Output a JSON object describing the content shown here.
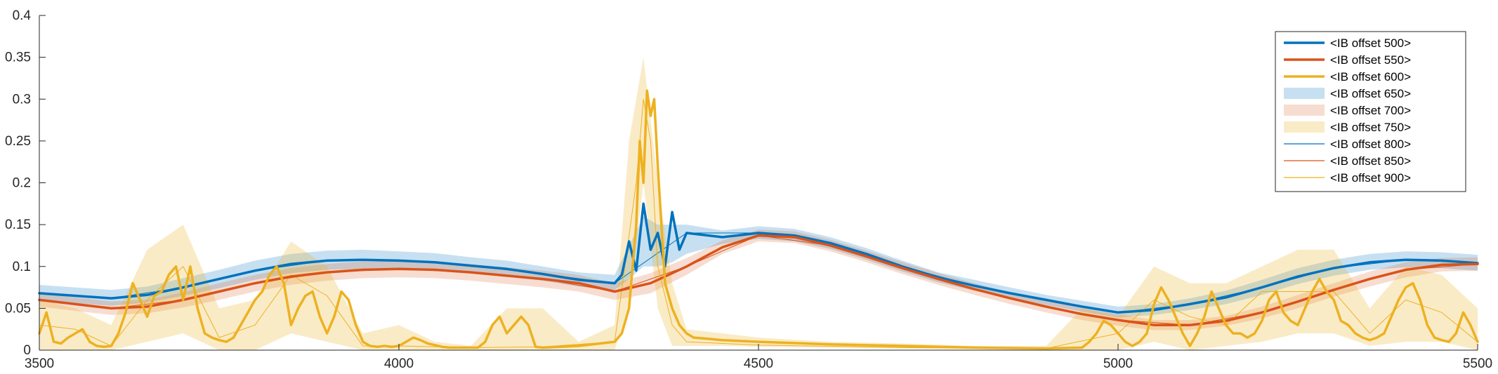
{
  "chart_data": {
    "type": "line",
    "title": "",
    "xlabel": "",
    "ylabel": "",
    "xlim": [
      3500,
      5500
    ],
    "ylim": [
      0,
      0.4
    ],
    "grid": false,
    "legend_position": "top-right",
    "x_ticks": [
      {
        "value": 3500,
        "label": "3500"
      },
      {
        "value": 4000,
        "label": "4000"
      },
      {
        "value": 4500,
        "label": "4500"
      },
      {
        "value": 5000,
        "label": "5000"
      },
      {
        "value": 5500,
        "label": "5500"
      }
    ],
    "y_ticks": [
      {
        "value": 0,
        "label": "0"
      },
      {
        "value": 0.05,
        "label": "0.05"
      },
      {
        "value": 0.1,
        "label": "0.1"
      },
      {
        "value": 0.15,
        "label": "0.15"
      },
      {
        "value": 0.2,
        "label": "0.2"
      },
      {
        "value": 0.25,
        "label": "0.25"
      },
      {
        "value": 0.3,
        "label": "0.3"
      },
      {
        "value": 0.35,
        "label": "0.35"
      },
      {
        "value": 0.4,
        "label": "0.4"
      }
    ],
    "series": [
      {
        "name": "<IB offset 500>",
        "kind": "line",
        "color": "#0072BD",
        "width": 3.5,
        "x": [
          3500,
          3550,
          3600,
          3650,
          3700,
          3750,
          3800,
          3850,
          3900,
          3950,
          4000,
          4050,
          4100,
          4150,
          4200,
          4250,
          4300,
          4310,
          4320,
          4330,
          4340,
          4350,
          4360,
          4370,
          4380,
          4390,
          4400,
          4450,
          4500,
          4550,
          4600,
          4650,
          4700,
          4750,
          4800,
          4850,
          4900,
          4950,
          5000,
          5050,
          5100,
          5150,
          5200,
          5250,
          5300,
          5350,
          5400,
          5450,
          5500
        ],
        "y": [
          0.068,
          0.065,
          0.062,
          0.066,
          0.075,
          0.085,
          0.095,
          0.103,
          0.107,
          0.108,
          0.107,
          0.105,
          0.101,
          0.097,
          0.091,
          0.084,
          0.08,
          0.09,
          0.13,
          0.095,
          0.175,
          0.12,
          0.14,
          0.1,
          0.165,
          0.12,
          0.14,
          0.135,
          0.14,
          0.137,
          0.128,
          0.115,
          0.1,
          0.087,
          0.077,
          0.068,
          0.06,
          0.052,
          0.045,
          0.048,
          0.055,
          0.063,
          0.075,
          0.088,
          0.098,
          0.105,
          0.108,
          0.107,
          0.104
        ]
      },
      {
        "name": "<IB offset 550>",
        "kind": "line",
        "color": "#D95319",
        "width": 3.5,
        "x": [
          3500,
          3550,
          3600,
          3650,
          3700,
          3750,
          3800,
          3850,
          3900,
          3950,
          4000,
          4050,
          4100,
          4150,
          4200,
          4250,
          4300,
          4350,
          4400,
          4450,
          4500,
          4550,
          4600,
          4650,
          4700,
          4750,
          4800,
          4850,
          4900,
          4950,
          5000,
          5050,
          5100,
          5150,
          5200,
          5250,
          5300,
          5350,
          5400,
          5450,
          5500
        ],
        "y": [
          0.06,
          0.055,
          0.05,
          0.052,
          0.06,
          0.07,
          0.08,
          0.088,
          0.093,
          0.096,
          0.097,
          0.096,
          0.093,
          0.089,
          0.085,
          0.08,
          0.07,
          0.08,
          0.1,
          0.123,
          0.137,
          0.135,
          0.125,
          0.112,
          0.098,
          0.085,
          0.073,
          0.062,
          0.052,
          0.043,
          0.036,
          0.03,
          0.03,
          0.035,
          0.045,
          0.058,
          0.072,
          0.085,
          0.096,
          0.102,
          0.103
        ]
      },
      {
        "name": "<IB offset 600>",
        "kind": "line",
        "color": "#EDB120",
        "width": 3.5,
        "x": [
          3500,
          3510,
          3520,
          3530,
          3540,
          3550,
          3560,
          3570,
          3580,
          3590,
          3600,
          3610,
          3620,
          3630,
          3640,
          3650,
          3660,
          3670,
          3680,
          3690,
          3700,
          3710,
          3720,
          3730,
          3740,
          3750,
          3760,
          3770,
          3780,
          3790,
          3800,
          3810,
          3820,
          3830,
          3840,
          3850,
          3860,
          3870,
          3880,
          3890,
          3900,
          3910,
          3920,
          3930,
          3940,
          3950,
          3960,
          3970,
          3980,
          3990,
          4000,
          4010,
          4020,
          4030,
          4040,
          4050,
          4060,
          4070,
          4080,
          4090,
          4100,
          4110,
          4120,
          4130,
          4140,
          4150,
          4160,
          4170,
          4180,
          4190,
          4200,
          4250,
          4300,
          4310,
          4320,
          4330,
          4335,
          4340,
          4345,
          4350,
          4355,
          4360,
          4365,
          4370,
          4380,
          4390,
          4400,
          4410,
          4450,
          4500,
          4600,
          4700,
          4800,
          4900,
          4950,
          4960,
          4970,
          4980,
          4990,
          5000,
          5010,
          5020,
          5030,
          5040,
          5050,
          5060,
          5070,
          5080,
          5090,
          5100,
          5110,
          5120,
          5130,
          5140,
          5150,
          5160,
          5170,
          5180,
          5190,
          5200,
          5210,
          5220,
          5230,
          5240,
          5250,
          5260,
          5270,
          5280,
          5290,
          5300,
          5310,
          5320,
          5330,
          5340,
          5350,
          5360,
          5370,
          5380,
          5390,
          5400,
          5410,
          5420,
          5430,
          5440,
          5450,
          5460,
          5470,
          5480,
          5490,
          5500
        ],
        "y": [
          0.02,
          0.045,
          0.01,
          0.008,
          0.015,
          0.02,
          0.025,
          0.01,
          0.005,
          0.004,
          0.005,
          0.02,
          0.045,
          0.08,
          0.06,
          0.04,
          0.065,
          0.07,
          0.09,
          0.1,
          0.06,
          0.1,
          0.05,
          0.02,
          0.015,
          0.012,
          0.01,
          0.015,
          0.03,
          0.045,
          0.06,
          0.07,
          0.09,
          0.1,
          0.08,
          0.03,
          0.05,
          0.065,
          0.07,
          0.04,
          0.02,
          0.04,
          0.07,
          0.06,
          0.03,
          0.01,
          0.005,
          0.004,
          0.005,
          0.004,
          0.005,
          0.01,
          0.015,
          0.012,
          0.008,
          0.006,
          0.004,
          0.003,
          0.003,
          0.003,
          0.003,
          0.003,
          0.01,
          0.03,
          0.04,
          0.02,
          0.03,
          0.04,
          0.03,
          0.004,
          0.003,
          0.005,
          0.01,
          0.02,
          0.05,
          0.15,
          0.25,
          0.2,
          0.31,
          0.28,
          0.3,
          0.22,
          0.15,
          0.08,
          0.05,
          0.03,
          0.02,
          0.015,
          0.012,
          0.01,
          0.007,
          0.005,
          0.003,
          0.002,
          0.003,
          0.01,
          0.02,
          0.035,
          0.03,
          0.02,
          0.01,
          0.005,
          0.01,
          0.02,
          0.055,
          0.075,
          0.06,
          0.04,
          0.02,
          0.005,
          0.02,
          0.04,
          0.07,
          0.05,
          0.03,
          0.02,
          0.02,
          0.015,
          0.02,
          0.035,
          0.06,
          0.07,
          0.045,
          0.035,
          0.03,
          0.05,
          0.07,
          0.085,
          0.07,
          0.06,
          0.035,
          0.03,
          0.02,
          0.015,
          0.012,
          0.015,
          0.02,
          0.04,
          0.06,
          0.075,
          0.08,
          0.06,
          0.03,
          0.015,
          0.012,
          0.01,
          0.02,
          0.045,
          0.03,
          0.01
        ]
      },
      {
        "name": "<IB offset 650>",
        "kind": "band",
        "color": "#0072BD",
        "opacity": 0.22,
        "x": [
          3500,
          3550,
          3600,
          3650,
          3700,
          3750,
          3800,
          3850,
          3900,
          3950,
          4000,
          4050,
          4100,
          4150,
          4200,
          4250,
          4300,
          4320,
          4340,
          4360,
          4380,
          4400,
          4450,
          4500,
          4550,
          4600,
          4650,
          4700,
          4750,
          4800,
          4850,
          4900,
          4950,
          5000,
          5050,
          5100,
          5150,
          5200,
          5250,
          5300,
          5350,
          5400,
          5450,
          5500
        ],
        "lower": [
          0.058,
          0.056,
          0.053,
          0.057,
          0.065,
          0.074,
          0.084,
          0.092,
          0.096,
          0.097,
          0.097,
          0.095,
          0.092,
          0.088,
          0.083,
          0.076,
          0.072,
          0.085,
          0.1,
          0.1,
          0.105,
          0.115,
          0.127,
          0.133,
          0.13,
          0.121,
          0.108,
          0.094,
          0.081,
          0.071,
          0.062,
          0.054,
          0.046,
          0.039,
          0.042,
          0.048,
          0.055,
          0.066,
          0.079,
          0.089,
          0.096,
          0.099,
          0.098,
          0.095
        ],
        "upper": [
          0.078,
          0.075,
          0.072,
          0.076,
          0.086,
          0.096,
          0.107,
          0.115,
          0.119,
          0.12,
          0.118,
          0.116,
          0.111,
          0.107,
          0.1,
          0.093,
          0.09,
          0.125,
          0.16,
          0.15,
          0.15,
          0.15,
          0.143,
          0.148,
          0.145,
          0.135,
          0.122,
          0.107,
          0.093,
          0.084,
          0.075,
          0.066,
          0.059,
          0.052,
          0.055,
          0.062,
          0.071,
          0.084,
          0.098,
          0.108,
          0.115,
          0.118,
          0.117,
          0.114
        ]
      },
      {
        "name": "<IB offset 700>",
        "kind": "band",
        "color": "#D95319",
        "opacity": 0.2,
        "x": [
          3500,
          3550,
          3600,
          3650,
          3700,
          3750,
          3800,
          3850,
          3900,
          3950,
          4000,
          4050,
          4100,
          4150,
          4200,
          4250,
          4300,
          4350,
          4400,
          4450,
          4500,
          4550,
          4600,
          4650,
          4700,
          4750,
          4800,
          4850,
          4900,
          4950,
          5000,
          5050,
          5100,
          5150,
          5200,
          5250,
          5300,
          5350,
          5400,
          5450,
          5500
        ],
        "lower": [
          0.052,
          0.047,
          0.042,
          0.044,
          0.051,
          0.06,
          0.07,
          0.078,
          0.083,
          0.086,
          0.087,
          0.086,
          0.083,
          0.079,
          0.075,
          0.07,
          0.06,
          0.068,
          0.09,
          0.115,
          0.13,
          0.128,
          0.118,
          0.105,
          0.091,
          0.078,
          0.066,
          0.055,
          0.045,
          0.036,
          0.029,
          0.024,
          0.024,
          0.029,
          0.038,
          0.05,
          0.064,
          0.076,
          0.087,
          0.094,
          0.095
        ],
        "upper": [
          0.068,
          0.063,
          0.058,
          0.06,
          0.069,
          0.08,
          0.09,
          0.098,
          0.103,
          0.106,
          0.107,
          0.106,
          0.103,
          0.099,
          0.095,
          0.09,
          0.08,
          0.092,
          0.11,
          0.131,
          0.144,
          0.142,
          0.132,
          0.119,
          0.105,
          0.092,
          0.08,
          0.069,
          0.059,
          0.05,
          0.043,
          0.036,
          0.036,
          0.041,
          0.052,
          0.066,
          0.08,
          0.094,
          0.105,
          0.11,
          0.111
        ]
      },
      {
        "name": "<IB offset 750>",
        "kind": "band",
        "color": "#EDB120",
        "opacity": 0.25,
        "x": [
          3500,
          3550,
          3600,
          3650,
          3700,
          3750,
          3800,
          3850,
          3900,
          3950,
          4000,
          4050,
          4100,
          4150,
          4200,
          4250,
          4300,
          4320,
          4340,
          4360,
          4380,
          4400,
          4450,
          4500,
          4600,
          4700,
          4800,
          4900,
          4950,
          5000,
          5050,
          5100,
          5150,
          5200,
          5250,
          5300,
          5350,
          5400,
          5450,
          5500
        ],
        "lower": [
          0.0,
          0.0,
          0.0,
          0.01,
          0.02,
          0.0,
          0.0,
          0.02,
          0.01,
          0.0,
          0.0,
          0.0,
          0.0,
          0.0,
          0.0,
          0.0,
          0.0,
          0.05,
          0.2,
          0.05,
          0.005,
          0.005,
          0.005,
          0.004,
          0.003,
          0.002,
          0.001,
          0.0,
          0.0,
          0.0,
          0.01,
          0.0,
          0.005,
          0.01,
          0.02,
          0.02,
          0.005,
          0.01,
          0.01,
          0.0
        ],
        "upper": [
          0.06,
          0.05,
          0.03,
          0.12,
          0.15,
          0.05,
          0.06,
          0.13,
          0.1,
          0.02,
          0.03,
          0.01,
          0.005,
          0.05,
          0.05,
          0.01,
          0.03,
          0.25,
          0.35,
          0.2,
          0.08,
          0.025,
          0.02,
          0.015,
          0.01,
          0.008,
          0.005,
          0.005,
          0.05,
          0.04,
          0.1,
          0.08,
          0.08,
          0.1,
          0.12,
          0.12,
          0.05,
          0.1,
          0.09,
          0.05
        ]
      },
      {
        "name": "<IB offset 800>",
        "kind": "thin",
        "color": "#0072BD",
        "width": 1,
        "x": [
          3500,
          3600,
          3700,
          3800,
          3900,
          4000,
          4100,
          4200,
          4300,
          4400,
          4500,
          4600,
          4700,
          4800,
          4900,
          5000,
          5100,
          5200,
          5300,
          5400,
          5500
        ],
        "y": [
          0.068,
          0.062,
          0.075,
          0.095,
          0.107,
          0.107,
          0.101,
          0.091,
          0.08,
          0.14,
          0.14,
          0.128,
          0.1,
          0.077,
          0.06,
          0.045,
          0.055,
          0.075,
          0.098,
          0.108,
          0.104
        ]
      },
      {
        "name": "<IB offset 850>",
        "kind": "thin",
        "color": "#D95319",
        "width": 1,
        "x": [
          3500,
          3600,
          3700,
          3800,
          3900,
          4000,
          4100,
          4200,
          4300,
          4400,
          4500,
          4600,
          4700,
          4800,
          4900,
          5000,
          5100,
          5200,
          5300,
          5400,
          5500
        ],
        "y": [
          0.06,
          0.05,
          0.06,
          0.08,
          0.093,
          0.097,
          0.093,
          0.085,
          0.07,
          0.1,
          0.137,
          0.125,
          0.098,
          0.073,
          0.052,
          0.036,
          0.03,
          0.045,
          0.072,
          0.096,
          0.103
        ]
      },
      {
        "name": "<IB offset 900>",
        "kind": "thin",
        "color": "#EDB120",
        "width": 1,
        "x": [
          3500,
          3550,
          3600,
          3650,
          3700,
          3750,
          3800,
          3850,
          3900,
          3950,
          4000,
          4100,
          4200,
          4300,
          4330,
          4340,
          4350,
          4360,
          4380,
          4400,
          4500,
          4700,
          4900,
          5000,
          5050,
          5100,
          5150,
          5200,
          5250,
          5300,
          5350,
          5400,
          5450,
          5500
        ],
        "y": [
          0.03,
          0.025,
          0.005,
          0.06,
          0.1,
          0.015,
          0.03,
          0.09,
          0.065,
          0.005,
          0.005,
          0.003,
          0.004,
          0.01,
          0.2,
          0.3,
          0.25,
          0.1,
          0.03,
          0.01,
          0.006,
          0.003,
          0.002,
          0.02,
          0.06,
          0.04,
          0.03,
          0.07,
          0.07,
          0.07,
          0.02,
          0.06,
          0.045,
          0.01
        ]
      }
    ]
  }
}
